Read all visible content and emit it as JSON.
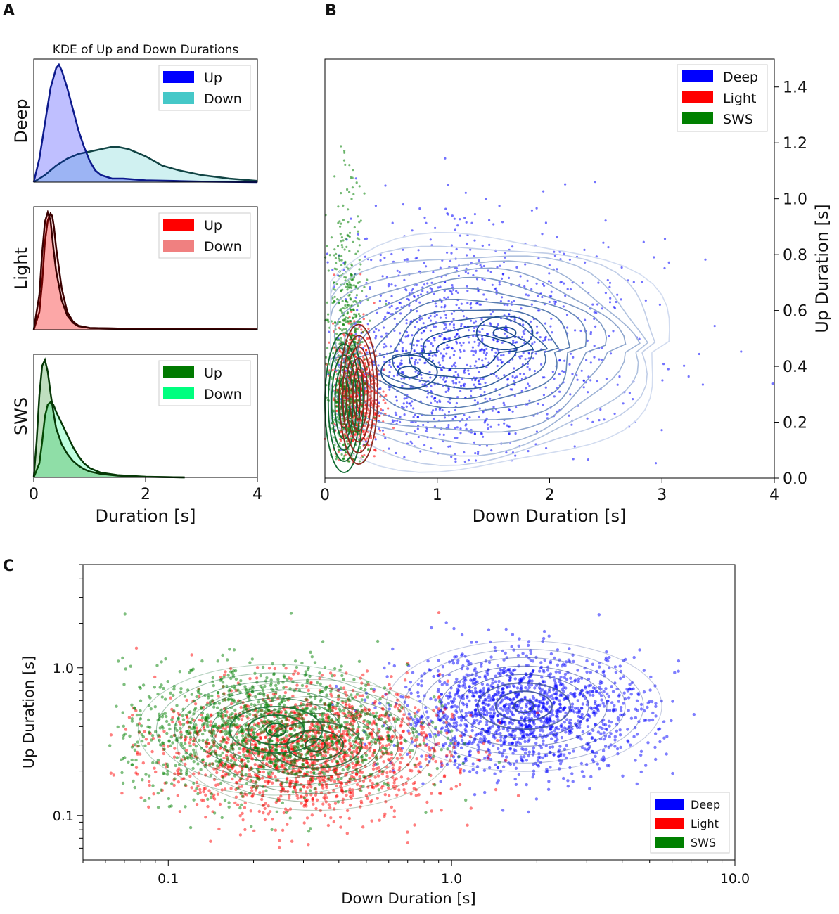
{
  "panel_labels": [
    "A",
    "B",
    "C"
  ],
  "chart_data": [
    {
      "id": "A",
      "type": "area",
      "title": "KDE of Up and Down Durations",
      "xlabel": "Duration [s]",
      "xlim": [
        0,
        4
      ],
      "xticks": [
        "0",
        "2",
        "4"
      ],
      "rows": [
        {
          "row_label": "Deep",
          "series": [
            {
              "name": "Up",
              "color": "#0000ff",
              "line": "#0d1a8c",
              "x": [
                0,
                0.1,
                0.2,
                0.3,
                0.4,
                0.45,
                0.5,
                0.6,
                0.7,
                0.8,
                0.9,
                1.0,
                1.1,
                1.2,
                1.4,
                1.6,
                2.0,
                2.5,
                3.0,
                4.0
              ],
              "y": [
                0,
                0.2,
                0.5,
                0.8,
                0.97,
                1.0,
                0.95,
                0.8,
                0.62,
                0.44,
                0.3,
                0.18,
                0.1,
                0.06,
                0.03,
                0.03,
                0.015,
                0.01,
                0.005,
                0
              ]
            },
            {
              "name": "Down",
              "color": "#45c8c8",
              "line": "#114444",
              "x": [
                0,
                0.2,
                0.4,
                0.6,
                0.8,
                1.0,
                1.2,
                1.4,
                1.5,
                1.7,
                2.0,
                2.3,
                2.6,
                3.0,
                3.5,
                4.0
              ],
              "y": [
                0,
                0.06,
                0.14,
                0.2,
                0.24,
                0.26,
                0.28,
                0.3,
                0.3,
                0.28,
                0.22,
                0.14,
                0.1,
                0.06,
                0.03,
                0.01
              ]
            }
          ]
        },
        {
          "row_label": "Light",
          "series": [
            {
              "name": "Up",
              "color": "#ff0000",
              "line": "#3a0000",
              "x": [
                0,
                0.1,
                0.15,
                0.2,
                0.25,
                0.3,
                0.35,
                0.4,
                0.5,
                0.6,
                0.7,
                0.8,
                1.0,
                1.5,
                2.0,
                4.0
              ],
              "y": [
                0,
                0.3,
                0.65,
                0.92,
                1.0,
                0.93,
                0.7,
                0.5,
                0.25,
                0.12,
                0.06,
                0.03,
                0.015,
                0.01,
                0.005,
                0.003
              ]
            },
            {
              "name": "Down",
              "color": "#f08080",
              "line": "#3a0000",
              "x": [
                0,
                0.1,
                0.15,
                0.2,
                0.25,
                0.3,
                0.33,
                0.36,
                0.4,
                0.5,
                0.6,
                0.7,
                0.8,
                1.0,
                1.5,
                4.0
              ],
              "y": [
                0,
                0.15,
                0.4,
                0.75,
                0.93,
                0.99,
                0.97,
                0.88,
                0.7,
                0.35,
                0.15,
                0.07,
                0.035,
                0.015,
                0.01,
                0.003
              ]
            }
          ]
        },
        {
          "row_label": "SWS",
          "series": [
            {
              "name": "Up",
              "color": "#007a00",
              "line": "#063806",
              "x": [
                0,
                0.05,
                0.1,
                0.15,
                0.2,
                0.25,
                0.3,
                0.35,
                0.4,
                0.5,
                0.6,
                0.7,
                0.8,
                0.9,
                1.0,
                1.2,
                1.5,
                2.0,
                2.5,
                2.7
              ],
              "y": [
                0,
                0.3,
                0.7,
                0.95,
                1.0,
                0.9,
                0.72,
                0.56,
                0.42,
                0.28,
                0.2,
                0.14,
                0.1,
                0.07,
                0.05,
                0.03,
                0.015,
                0.005,
                0.002,
                0
              ]
            },
            {
              "name": "Down",
              "color": "#00ff7f",
              "line": "#063806",
              "x": [
                0,
                0.1,
                0.15,
                0.2,
                0.25,
                0.3,
                0.35,
                0.4,
                0.5,
                0.6,
                0.7,
                0.8,
                0.9,
                1.0,
                1.2,
                1.5,
                2.0,
                2.5,
                2.7
              ],
              "y": [
                0,
                0.12,
                0.3,
                0.52,
                0.62,
                0.64,
                0.62,
                0.56,
                0.46,
                0.36,
                0.26,
                0.18,
                0.12,
                0.08,
                0.04,
                0.02,
                0.006,
                0.002,
                0
              ]
            }
          ]
        }
      ]
    },
    {
      "id": "B",
      "type": "scatter",
      "xlabel": "Down Duration [s]",
      "ylabel": "Up Duration [s]",
      "xlim": [
        0,
        4
      ],
      "ylim": [
        0,
        1.5
      ],
      "xticks": [
        "0",
        "1",
        "2",
        "3",
        "4"
      ],
      "yticks": [
        "0.0",
        "0.2",
        "0.4",
        "0.6",
        "0.8",
        "1.0",
        "1.2",
        "1.4"
      ],
      "legend": "top-right",
      "series": [
        {
          "name": "Deep",
          "color": "#0000ff",
          "center_x": 1.5,
          "center_y": 0.45,
          "spread_x": 0.8,
          "spread_y": 0.2
        },
        {
          "name": "Light",
          "color": "#ff0000",
          "center_x": 0.3,
          "center_y": 0.3,
          "spread_x": 0.1,
          "spread_y": 0.12
        },
        {
          "name": "SWS",
          "color": "#008000",
          "center_x": 0.2,
          "center_y": 0.35,
          "spread_x": 0.08,
          "spread_y": 0.25
        }
      ],
      "contour_peaks": [
        [
          0.75,
          0.38
        ],
        [
          1.6,
          0.52
        ],
        [
          0.17,
          0.27
        ],
        [
          0.3,
          0.3
        ]
      ]
    },
    {
      "id": "C",
      "type": "scatter",
      "scale": "log",
      "xlabel": "Down Duration [s]",
      "ylabel": "Up Duration [s]",
      "xlim": [
        0.05,
        10
      ],
      "ylim": [
        0.05,
        5
      ],
      "xticks": [
        "0.1",
        "1.0",
        "10.0"
      ],
      "yticks": [
        "0.1",
        "1.0"
      ],
      "legend": "bottom-right",
      "series": [
        {
          "name": "Deep",
          "color": "#0000ff",
          "center_x": 1.8,
          "center_y": 0.5
        },
        {
          "name": "Light",
          "color": "#ff0000",
          "center_x": 0.3,
          "center_y": 0.28
        },
        {
          "name": "SWS",
          "color": "#008000",
          "center_x": 0.22,
          "center_y": 0.36
        }
      ],
      "contour_peaks": [
        [
          1.8,
          0.55
        ],
        [
          0.24,
          0.38
        ],
        [
          0.33,
          0.3
        ]
      ]
    }
  ]
}
